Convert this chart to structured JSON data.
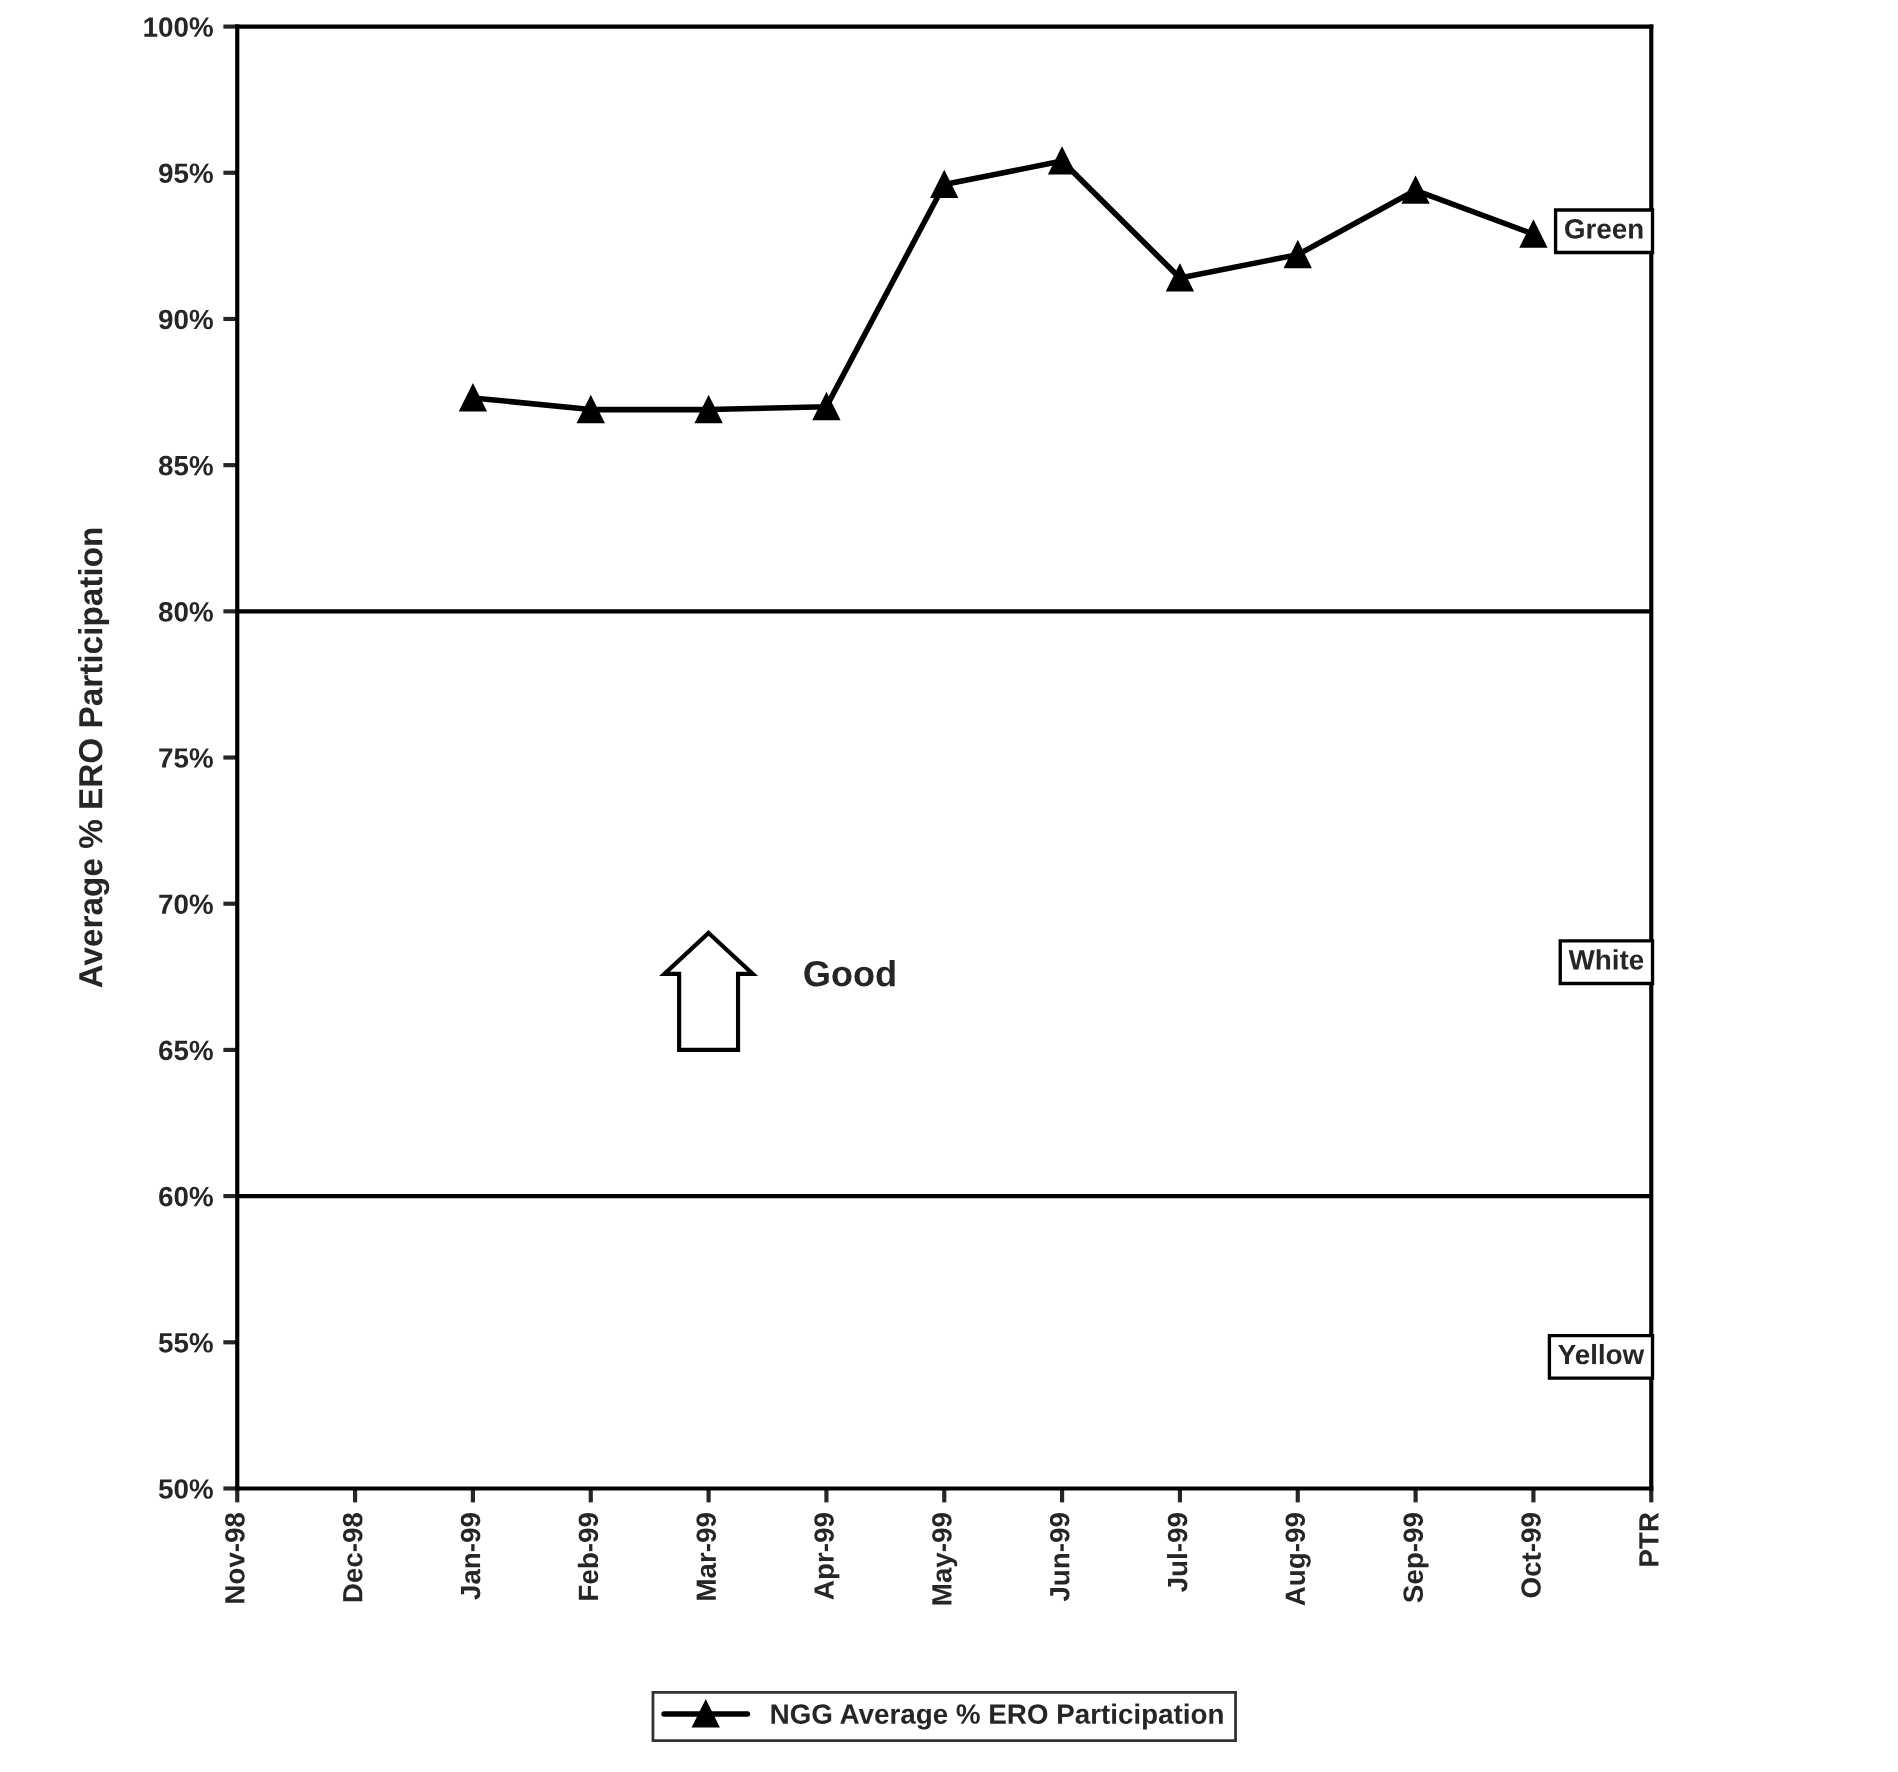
{
  "chart_data": {
    "type": "line",
    "ylabel": "Average % ERO Participation",
    "categories": [
      "Nov-98",
      "Dec-98",
      "Jan-99",
      "Feb-99",
      "Mar-99",
      "Apr-99",
      "May-99",
      "Jun-99",
      "Jul-99",
      "Aug-99",
      "Sep-99",
      "Oct-99",
      "PTR"
    ],
    "series": [
      {
        "name": "NGG Average % ERO Participation",
        "color": "#000000",
        "values": [
          null,
          null,
          87.3,
          86.9,
          86.9,
          87.0,
          94.6,
          95.4,
          91.4,
          92.2,
          94.4,
          92.9,
          null
        ]
      }
    ],
    "ylim": [
      50,
      100
    ],
    "yticks": [
      {
        "value": 50,
        "label": "50%"
      },
      {
        "value": 55,
        "label": "55%"
      },
      {
        "value": 60,
        "label": "60%"
      },
      {
        "value": 65,
        "label": "65%"
      },
      {
        "value": 70,
        "label": "70%"
      },
      {
        "value": 75,
        "label": "75%"
      },
      {
        "value": 80,
        "label": "80%"
      },
      {
        "value": 85,
        "label": "85%"
      },
      {
        "value": 90,
        "label": "90%"
      },
      {
        "value": 95,
        "label": "95%"
      },
      {
        "value": 100,
        "label": "100%"
      }
    ],
    "ref_lines": [
      {
        "axis": "y",
        "value": 80
      },
      {
        "axis": "y",
        "value": 60
      }
    ],
    "annotations": [
      "Good",
      "Green",
      "White",
      "Yellow"
    ],
    "marker": "triangle",
    "line_style": "solid",
    "grid": false,
    "legend": "bottom"
  }
}
